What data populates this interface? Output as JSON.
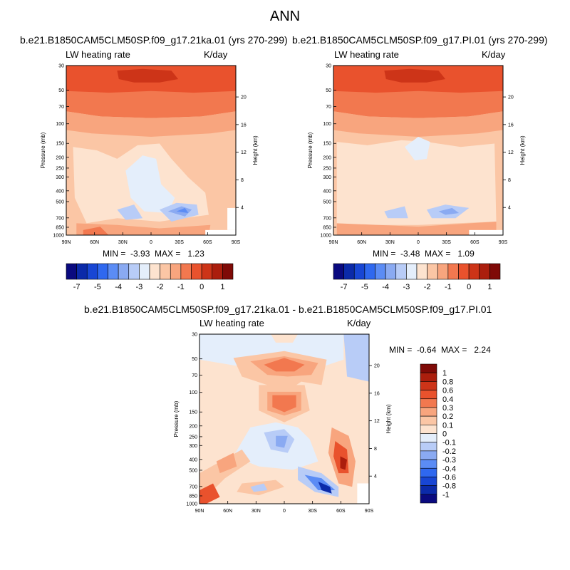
{
  "title": "ANN",
  "panels": [
    {
      "title": "b.e21.B1850CAM5CLM50SP.f09_g17.21ka.01 (yrs 270-299)",
      "variable": "LW heating rate",
      "units": "K/day",
      "min_label": "MIN =",
      "min_value": "-3.93",
      "max_label": "MAX =",
      "max_value": "1.23"
    },
    {
      "title": "b.e21.B1850CAM5CLM50SP.f09_g17.PI.01 (yrs 270-299)",
      "variable": "LW heating rate",
      "units": "K/day",
      "min_label": "MIN =",
      "min_value": "-3.48",
      "max_label": "MAX =",
      "max_value": "1.09"
    },
    {
      "title": "b.e21.B1850CAM5CLM50SP.f09_g17.21ka.01 - b.e21.B1850CAM5CLM50SP.f09_g17.PI.01",
      "variable": "LW heating rate",
      "units": "K/day",
      "min_label": "MIN =",
      "min_value": "-0.64",
      "max_label": "MAX =",
      "max_value": "2.24"
    }
  ],
  "chart_data": [
    {
      "type": "heatmap",
      "panel": "21ka",
      "title": "b.e21.B1850CAM5CLM50SP.f09_g17.21ka.01 (yrs 270-299)",
      "x_ticks": [
        "90N",
        "60N",
        "30N",
        "0",
        "30S",
        "60S",
        "90S"
      ],
      "x_range": [
        90,
        -90
      ],
      "ylabel": "Pressure (mb)",
      "y_ticks": [
        30,
        50,
        70,
        100,
        150,
        200,
        250,
        300,
        400,
        500,
        700,
        850,
        1000
      ],
      "y_range": [
        30,
        1000
      ],
      "y2label": "Height (km)",
      "y2_ticks": [
        20,
        16,
        12,
        8,
        4
      ],
      "min": -3.93,
      "max": 1.23
    },
    {
      "type": "heatmap",
      "panel": "PI",
      "title": "b.e21.B1850CAM5CLM50SP.f09_g17.PI.01 (yrs 270-299)",
      "x_ticks": [
        "90N",
        "60N",
        "30N",
        "0",
        "30S",
        "60S",
        "90S"
      ],
      "x_range": [
        90,
        -90
      ],
      "ylabel": "Pressure (mb)",
      "y_ticks": [
        30,
        50,
        70,
        100,
        150,
        200,
        250,
        300,
        400,
        500,
        700,
        850,
        1000
      ],
      "y_range": [
        30,
        1000
      ],
      "y2label": "Height (km)",
      "y2_ticks": [
        20,
        16,
        12,
        8,
        4
      ],
      "min": -3.48,
      "max": 1.09
    },
    {
      "type": "heatmap",
      "panel": "difference",
      "title": "b.e21.B1850CAM5CLM50SP.f09_g17.21ka.01 - b.e21.B1850CAM5CLM50SP.f09_g17.PI.01",
      "x_ticks": [
        "90N",
        "60N",
        "30N",
        "0",
        "30S",
        "60S",
        "90S"
      ],
      "x_range": [
        90,
        -90
      ],
      "ylabel": "Pressure (mb)",
      "y_ticks": [
        30,
        50,
        70,
        100,
        150,
        200,
        250,
        300,
        400,
        500,
        700,
        850,
        1000
      ],
      "y_range": [
        30,
        1000
      ],
      "y2label": "Height (km)",
      "y2_ticks": [
        20,
        16,
        12,
        8,
        4
      ],
      "min": -0.64,
      "max": 2.24
    }
  ],
  "colorbar_top": {
    "colors": [
      "#0a0a7f",
      "#0b2aa9",
      "#1846d4",
      "#2f68ef",
      "#5b8cf5",
      "#8aaaf2",
      "#b8ccf7",
      "#e4eefb",
      "#fde3cf",
      "#fbc6a5",
      "#f8a57e",
      "#f2784f",
      "#e9522d",
      "#cd3418",
      "#ab1e0d",
      "#7f0a07"
    ],
    "labels": [
      "-7",
      "-5",
      "-4",
      "-3",
      "-2",
      "-1",
      "0",
      "1"
    ]
  },
  "colorbar_diff": {
    "colors": [
      "#0a0a7f",
      "#0b2aa9",
      "#1846d4",
      "#2f68ef",
      "#5b8cf5",
      "#8aaaf2",
      "#b8ccf7",
      "#e4eefb",
      "#fde3cf",
      "#fbc6a5",
      "#f8a57e",
      "#f2784f",
      "#e9522d",
      "#cd3418",
      "#ab1e0d",
      "#7f0a07"
    ],
    "labels": [
      "1",
      "0.8",
      "0.6",
      "0.4",
      "0.3",
      "0.2",
      "0.1",
      "0",
      "-0.1",
      "-0.2",
      "-0.3",
      "-0.4",
      "-0.6",
      "-0.8",
      "-1"
    ]
  }
}
